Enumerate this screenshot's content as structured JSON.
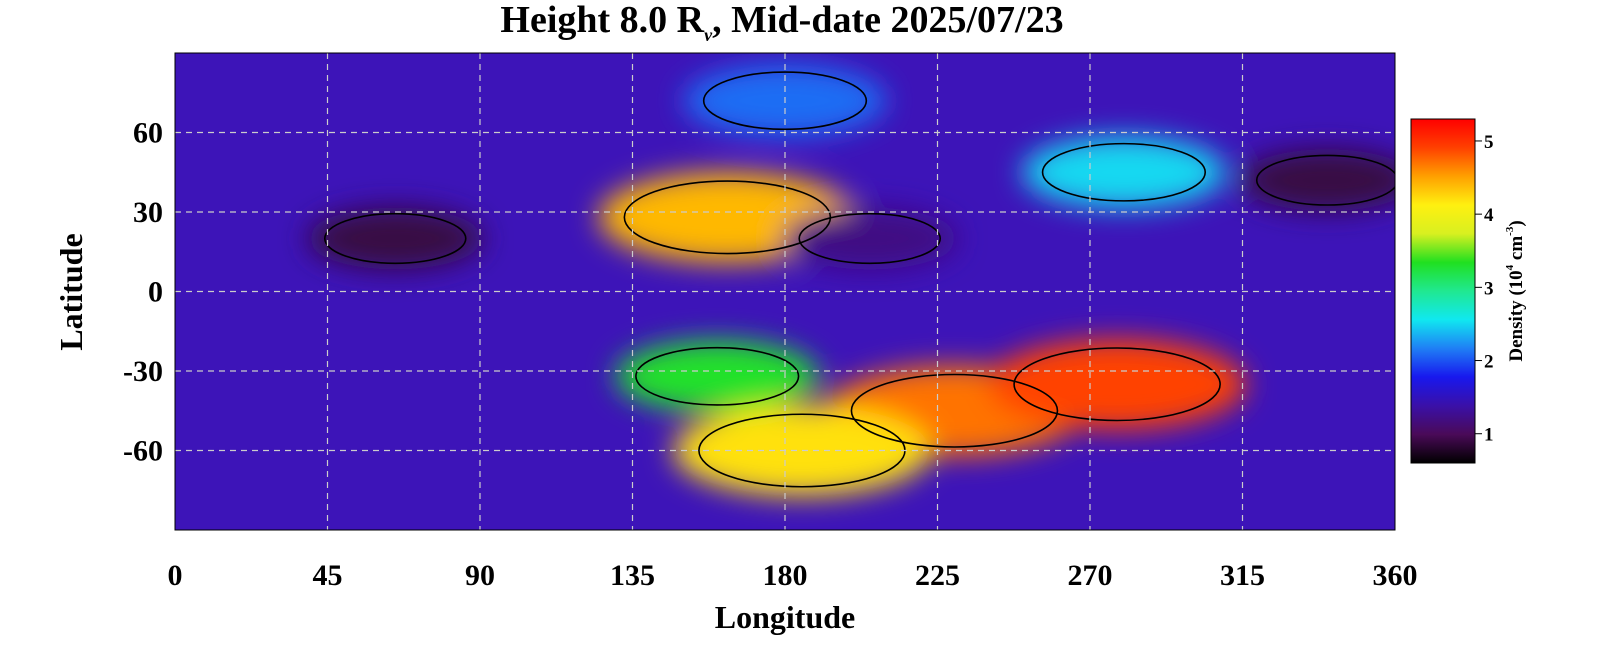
{
  "chart_data": {
    "type": "heatmap",
    "title": {
      "prefix": "Height 8.0 R",
      "subscript": "v",
      "suffix": ", Mid-date 2025/07/23"
    },
    "xlabel": "Longitude",
    "ylabel": "Latitude",
    "xlim": [
      0,
      360
    ],
    "ylim": [
      -90,
      90
    ],
    "xticks": [
      0,
      45,
      90,
      135,
      180,
      225,
      270,
      315,
      360
    ],
    "yticks": [
      60,
      30,
      0,
      -30,
      -60
    ],
    "grid": true,
    "colorbar": {
      "label_prefix": "Density (10",
      "label_sup1": "4",
      "label_mid": " cm",
      "label_sup2": "-3",
      "label_suffix": ")",
      "range": [
        0.6,
        5.3
      ],
      "ticks": [
        1,
        2,
        3,
        4,
        5
      ],
      "colors": [
        "#000000",
        "#4a0a58",
        "#3a10a8",
        "#1818ee",
        "#1f7ff5",
        "#10e8f0",
        "#20e890",
        "#20e020",
        "#d8f020",
        "#fff010",
        "#ffa000",
        "#ff4000",
        "#ff0000"
      ]
    },
    "density_features": [
      {
        "name": "southern-band",
        "lon": 230,
        "lat": -45,
        "peak_density": 4.7
      },
      {
        "name": "southern-band-core",
        "lon": 278,
        "lat": -35,
        "peak_density": 4.9
      },
      {
        "name": "southern-lobe-west",
        "lon": 160,
        "lat": -32,
        "peak_density": 3.3
      },
      {
        "name": "southern-lobe-south",
        "lon": 185,
        "lat": -60,
        "peak_density": 4.2
      },
      {
        "name": "northern-spot",
        "lon": 163,
        "lat": 28,
        "peak_density": 4.4
      },
      {
        "name": "northern-streamer",
        "lon": 280,
        "lat": 45,
        "peak_density": 2.5
      },
      {
        "name": "polar-band",
        "lon": 180,
        "lat": 72,
        "peak_density": 2.1
      },
      {
        "name": "low-west",
        "lon": 65,
        "lat": 20,
        "peak_density": 0.9
      },
      {
        "name": "low-center",
        "lon": 205,
        "lat": 20,
        "peak_density": 1.2
      },
      {
        "name": "low-east",
        "lon": 340,
        "lat": 42,
        "peak_density": 0.9
      }
    ]
  }
}
